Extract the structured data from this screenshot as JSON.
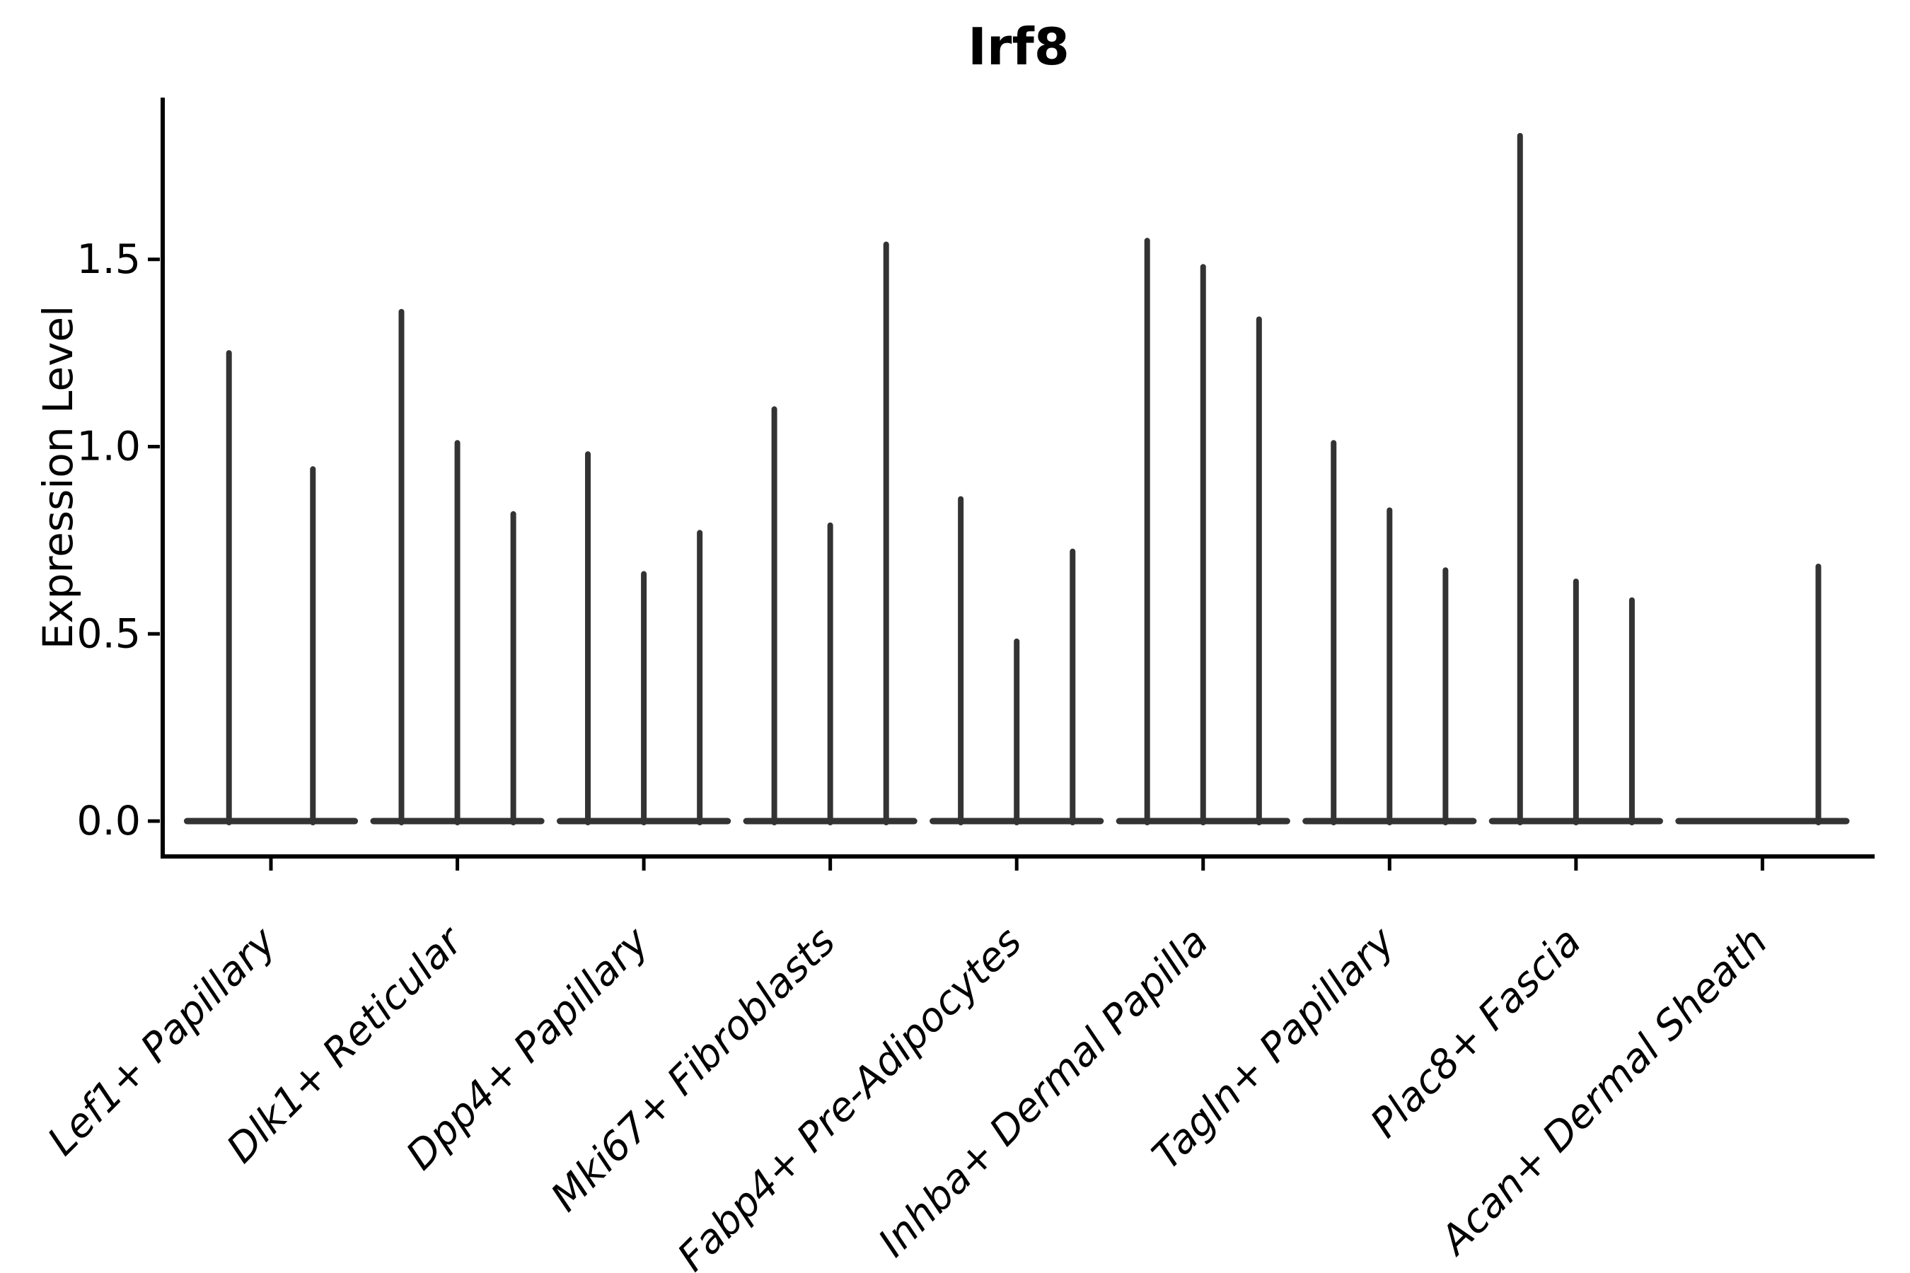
{
  "chart_data": {
    "type": "violin",
    "title": "Irf8",
    "xlabel": "",
    "ylabel": "Expression Level",
    "yticks": [
      0.0,
      0.5,
      1.0,
      1.5
    ],
    "ytick_labels": [
      "0.0",
      "0.5",
      "1.0",
      "1.5"
    ],
    "ylim": [
      -0.09,
      1.93
    ],
    "grid": false,
    "legend": false,
    "background": "#ffffff",
    "axis_color": "#000000",
    "violin_color": "#333333",
    "categories": [
      "Lef1+ Papillary",
      "Dlk1+ Reticular",
      "Dpp4+ Papillary",
      "Mki67+ Fibroblasts",
      "Fabp4+ Pre-Adipocytes",
      "Inhba+ Dermal Papilla",
      "Tagln+ Papillary",
      "Plac8+ Fascia",
      "Acan+ Dermal Sheath"
    ],
    "description": "Single-cell expression violin plot; most cells express 0 so each violin collapses to a flat base at 0 with a thin spike up to the maximum expression value. Each category holds up to 3 dodged violins (sub-groups).",
    "series": [
      {
        "category": "Lef1+ Papillary",
        "spike_maxima": [
          1.25,
          0.94
        ]
      },
      {
        "category": "Dlk1+ Reticular",
        "spike_maxima": [
          1.36,
          1.01,
          0.82
        ]
      },
      {
        "category": "Dpp4+ Papillary",
        "spike_maxima": [
          0.98,
          0.66,
          0.77
        ]
      },
      {
        "category": "Mki67+ Fibroblasts",
        "spike_maxima": [
          1.1,
          0.79,
          1.54
        ]
      },
      {
        "category": "Fabp4+ Pre-Adipocytes",
        "spike_maxima": [
          0.86,
          0.48,
          0.72
        ]
      },
      {
        "category": "Inhba+ Dermal Papilla",
        "spike_maxima": [
          1.55,
          1.48,
          1.34
        ]
      },
      {
        "category": "Tagln+ Papillary",
        "spike_maxima": [
          1.01,
          0.83,
          0.67
        ]
      },
      {
        "category": "Plac8+ Fascia",
        "spike_maxima": [
          1.83,
          0.64,
          0.59
        ]
      },
      {
        "category": "Acan+ Dermal Sheath",
        "spike_maxima": [
          0.0,
          0.0,
          0.68
        ]
      }
    ]
  }
}
